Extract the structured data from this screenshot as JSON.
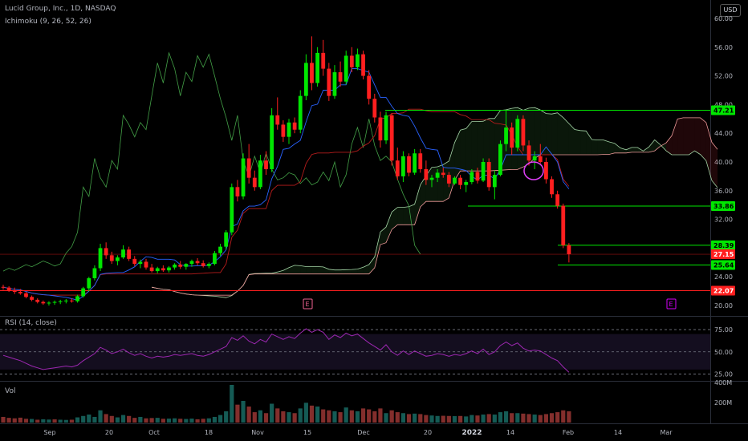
{
  "header": {
    "symbol_line": "Lucid Group, Inc., 1D, NASDAQ",
    "indicator": "Ichimoku (9, 26, 52, 26)",
    "currency": "USD"
  },
  "rsi_panel": {
    "label": "RSI (14, close)",
    "levels": [
      "75.00",
      "50.00",
      "25.00"
    ]
  },
  "volume_panel": {
    "label": "Vol",
    "ticks": [
      "400M",
      "200M"
    ]
  },
  "colors": {
    "bull": "#26a69a",
    "up": "#00e600",
    "down": "#ff1f1f",
    "blue": "#2962ff",
    "red_line": "#ff5252",
    "rsi": "#9c27b0"
  },
  "chart_data": {
    "type": "candlestick",
    "price_axis": {
      "ticks": [
        "60.00",
        "56.00",
        "52.00",
        "48.00",
        "44.00",
        "40.00",
        "36.00",
        "32.00",
        "28.00",
        "24.00",
        "20.00"
      ],
      "ylim": [
        19,
        61
      ]
    },
    "time_axis": {
      "labels": [
        "Sep",
        "20",
        "Oct",
        "18",
        "Nov",
        "15",
        "Dec",
        "20",
        "2022",
        "14",
        "Feb",
        "14",
        "Mar"
      ]
    },
    "price_labels": [
      {
        "text": "47.21",
        "value": 47.21,
        "color": "#00e600"
      },
      {
        "text": "33.86",
        "value": 33.86,
        "color": "#00e600"
      },
      {
        "text": "28.39",
        "value": 28.39,
        "color": "#00e600"
      },
      {
        "text": "27.15",
        "value": 27.15,
        "color": "#ff1f1f"
      },
      {
        "text": "25.64",
        "value": 25.64,
        "color": "#00e600"
      },
      {
        "text": "22.07",
        "value": 22.07,
        "color": "#ff1f1f"
      }
    ],
    "horizontal_levels": [
      47.21,
      33.86,
      28.39,
      25.64,
      22.07
    ],
    "earnings_markers": [
      "E",
      "E"
    ],
    "candles": [
      [
        22.6,
        22.9,
        22.2,
        22.5
      ],
      [
        22.5,
        22.7,
        21.9,
        22.1
      ],
      [
        22.1,
        22.5,
        21.6,
        21.9
      ],
      [
        21.9,
        22.3,
        21.5,
        21.7
      ],
      [
        21.7,
        21.9,
        21.0,
        21.2
      ],
      [
        21.2,
        21.4,
        20.6,
        20.8
      ],
      [
        20.8,
        21.0,
        20.3,
        20.5
      ],
      [
        20.5,
        20.7,
        20.1,
        20.3
      ],
      [
        20.3,
        20.6,
        20.0,
        20.4
      ],
      [
        20.4,
        20.7,
        20.1,
        20.5
      ],
      [
        20.5,
        20.8,
        20.2,
        20.6
      ],
      [
        20.6,
        20.9,
        20.3,
        20.7
      ],
      [
        20.7,
        21.0,
        20.4,
        20.6
      ],
      [
        20.6,
        21.5,
        20.4,
        21.3
      ],
      [
        21.3,
        22.6,
        21.1,
        22.4
      ],
      [
        22.4,
        24.0,
        22.0,
        23.8
      ],
      [
        23.8,
        25.6,
        23.5,
        25.2
      ],
      [
        25.2,
        28.6,
        24.8,
        28.0
      ],
      [
        28.0,
        28.8,
        26.5,
        27.0
      ],
      [
        27.0,
        27.5,
        25.8,
        26.2
      ],
      [
        26.2,
        27.0,
        25.6,
        26.7
      ],
      [
        26.7,
        28.4,
        26.5,
        27.8
      ],
      [
        27.8,
        28.2,
        26.2,
        26.5
      ],
      [
        26.5,
        26.9,
        25.5,
        25.8
      ],
      [
        25.8,
        26.4,
        25.2,
        26.1
      ],
      [
        26.1,
        26.5,
        25.0,
        25.3
      ],
      [
        25.3,
        25.8,
        24.6,
        24.8
      ],
      [
        24.8,
        25.4,
        24.5,
        25.2
      ],
      [
        25.2,
        25.6,
        24.7,
        24.9
      ],
      [
        24.9,
        25.5,
        24.6,
        25.3
      ],
      [
        25.3,
        25.9,
        25.0,
        25.7
      ],
      [
        25.7,
        26.2,
        25.1,
        25.4
      ],
      [
        25.4,
        25.9,
        25.0,
        25.8
      ],
      [
        25.8,
        26.4,
        25.4,
        26.2
      ],
      [
        26.2,
        26.6,
        25.6,
        25.9
      ],
      [
        25.9,
        26.3,
        25.3,
        25.5
      ],
      [
        25.5,
        26.0,
        25.2,
        25.8
      ],
      [
        25.8,
        27.6,
        25.6,
        27.3
      ],
      [
        27.3,
        28.6,
        26.9,
        28.2
      ],
      [
        28.2,
        30.5,
        27.8,
        30.2
      ],
      [
        30.2,
        37.0,
        29.8,
        36.5
      ],
      [
        36.5,
        37.5,
        34.5,
        35.2
      ],
      [
        35.2,
        41.2,
        34.8,
        40.5
      ],
      [
        40.5,
        42.5,
        37.0,
        37.8
      ],
      [
        37.8,
        38.8,
        36.0,
        36.5
      ],
      [
        36.5,
        41.0,
        36.2,
        40.2
      ],
      [
        40.2,
        41.5,
        38.2,
        39.0
      ],
      [
        39.0,
        47.5,
        38.6,
        46.5
      ],
      [
        46.5,
        49.0,
        44.5,
        45.2
      ],
      [
        45.2,
        45.8,
        42.8,
        43.5
      ],
      [
        43.5,
        46.0,
        42.5,
        45.5
      ],
      [
        45.5,
        46.2,
        44.0,
        44.5
      ],
      [
        44.5,
        50.0,
        44.0,
        49.2
      ],
      [
        49.2,
        55.0,
        48.6,
        53.8
      ],
      [
        53.8,
        57.5,
        50.0,
        51.0
      ],
      [
        51.0,
        56.0,
        50.5,
        55.2
      ],
      [
        55.2,
        57.0,
        52.0,
        53.0
      ],
      [
        53.0,
        53.8,
        48.5,
        49.2
      ],
      [
        49.2,
        53.5,
        48.8,
        52.5
      ],
      [
        52.5,
        54.0,
        50.5,
        51.2
      ],
      [
        51.2,
        55.5,
        50.8,
        54.8
      ],
      [
        54.8,
        56.0,
        52.5,
        53.2
      ],
      [
        53.2,
        55.8,
        52.8,
        55.0
      ],
      [
        55.0,
        55.5,
        51.5,
        52.0
      ],
      [
        52.0,
        52.8,
        48.0,
        48.8
      ],
      [
        48.8,
        49.5,
        45.5,
        46.2
      ],
      [
        46.2,
        47.0,
        42.0,
        43.0
      ],
      [
        43.0,
        47.0,
        42.5,
        46.5
      ],
      [
        46.5,
        46.8,
        39.5,
        40.2
      ],
      [
        40.2,
        42.0,
        37.5,
        38.0
      ],
      [
        38.0,
        41.5,
        37.2,
        40.8
      ],
      [
        40.8,
        41.2,
        38.0,
        38.5
      ],
      [
        38.5,
        41.8,
        38.2,
        41.2
      ],
      [
        41.2,
        41.8,
        38.5,
        39.0
      ],
      [
        39.0,
        40.2,
        36.8,
        37.5
      ],
      [
        37.5,
        38.2,
        36.5,
        37.8
      ],
      [
        37.8,
        39.0,
        37.2,
        38.5
      ],
      [
        38.5,
        39.2,
        37.8,
        38.2
      ],
      [
        38.2,
        38.6,
        36.5,
        37.0
      ],
      [
        37.0,
        38.0,
        36.8,
        37.8
      ],
      [
        37.8,
        38.2,
        36.2,
        36.8
      ],
      [
        36.8,
        37.5,
        35.8,
        37.2
      ],
      [
        37.2,
        39.0,
        36.9,
        38.6
      ],
      [
        38.6,
        39.2,
        37.0,
        37.4
      ],
      [
        37.4,
        40.5,
        37.2,
        40.0
      ],
      [
        40.0,
        40.5,
        36.0,
        36.5
      ],
      [
        36.5,
        38.8,
        34.8,
        38.2
      ],
      [
        38.2,
        43.0,
        38.0,
        42.5
      ],
      [
        42.5,
        47.2,
        41.5,
        44.8
      ],
      [
        44.8,
        45.5,
        41.0,
        42.0
      ],
      [
        42.0,
        46.5,
        41.5,
        46.0
      ],
      [
        46.0,
        46.5,
        41.5,
        42.3
      ],
      [
        42.3,
        43.0,
        39.5,
        40.2
      ],
      [
        40.2,
        41.5,
        39.0,
        40.8
      ],
      [
        40.8,
        42.5,
        39.8,
        40.0
      ],
      [
        40.0,
        40.6,
        37.0,
        37.6
      ],
      [
        37.6,
        38.0,
        35.0,
        35.5
      ],
      [
        35.5,
        36.0,
        33.5,
        33.9
      ],
      [
        33.9,
        34.2,
        28.0,
        28.4
      ],
      [
        28.4,
        28.7,
        26.0,
        27.15
      ]
    ],
    "volumes": [
      [
        60,
        0
      ],
      [
        50,
        0
      ],
      [
        45,
        0
      ],
      [
        52,
        0
      ],
      [
        40,
        0
      ],
      [
        38,
        1
      ],
      [
        30,
        0
      ],
      [
        35,
        1
      ],
      [
        32,
        1
      ],
      [
        34,
        0
      ],
      [
        30,
        1
      ],
      [
        28,
        1
      ],
      [
        30,
        0
      ],
      [
        55,
        1
      ],
      [
        70,
        1
      ],
      [
        85,
        1
      ],
      [
        60,
        1
      ],
      [
        130,
        1
      ],
      [
        90,
        0
      ],
      [
        70,
        0
      ],
      [
        55,
        1
      ],
      [
        80,
        1
      ],
      [
        70,
        0
      ],
      [
        50,
        0
      ],
      [
        60,
        1
      ],
      [
        45,
        0
      ],
      [
        48,
        0
      ],
      [
        50,
        1
      ],
      [
        40,
        0
      ],
      [
        42,
        1
      ],
      [
        45,
        1
      ],
      [
        40,
        0
      ],
      [
        38,
        1
      ],
      [
        42,
        1
      ],
      [
        35,
        0
      ],
      [
        40,
        0
      ],
      [
        45,
        1
      ],
      [
        60,
        1
      ],
      [
        80,
        1
      ],
      [
        120,
        1
      ],
      [
        400,
        1
      ],
      [
        190,
        0
      ],
      [
        230,
        1
      ],
      [
        170,
        0
      ],
      [
        110,
        0
      ],
      [
        130,
        1
      ],
      [
        100,
        0
      ],
      [
        200,
        1
      ],
      [
        150,
        0
      ],
      [
        120,
        0
      ],
      [
        110,
        1
      ],
      [
        100,
        0
      ],
      [
        150,
        1
      ],
      [
        210,
        1
      ],
      [
        180,
        0
      ],
      [
        170,
        1
      ],
      [
        140,
        0
      ],
      [
        130,
        0
      ],
      [
        120,
        1
      ],
      [
        110,
        0
      ],
      [
        160,
        1
      ],
      [
        130,
        0
      ],
      [
        120,
        1
      ],
      [
        150,
        0
      ],
      [
        140,
        0
      ],
      [
        120,
        0
      ],
      [
        150,
        0
      ],
      [
        100,
        1
      ],
      [
        130,
        0
      ],
      [
        110,
        0
      ],
      [
        100,
        1
      ],
      [
        90,
        0
      ],
      [
        95,
        1
      ],
      [
        90,
        0
      ],
      [
        80,
        0
      ],
      [
        75,
        1
      ],
      [
        70,
        1
      ],
      [
        72,
        0
      ],
      [
        70,
        0
      ],
      [
        68,
        1
      ],
      [
        70,
        0
      ],
      [
        65,
        1
      ],
      [
        80,
        1
      ],
      [
        75,
        0
      ],
      [
        85,
        1
      ],
      [
        90,
        0
      ],
      [
        85,
        1
      ],
      [
        110,
        1
      ],
      [
        120,
        1
      ],
      [
        100,
        0
      ],
      [
        100,
        1
      ],
      [
        95,
        0
      ],
      [
        90,
        0
      ],
      [
        85,
        1
      ],
      [
        80,
        0
      ],
      [
        90,
        0
      ],
      [
        100,
        0
      ],
      [
        110,
        0
      ],
      [
        130,
        0
      ],
      [
        120,
        0
      ]
    ],
    "rsi": [
      46,
      44,
      42,
      40,
      37,
      34,
      32,
      30,
      31,
      32,
      33,
      34,
      33,
      35,
      40,
      44,
      48,
      55,
      52,
      48,
      50,
      53,
      49,
      46,
      48,
      45,
      43,
      45,
      44,
      45,
      47,
      46,
      47,
      48,
      46,
      45,
      47,
      50,
      53,
      56,
      66,
      63,
      68,
      62,
      59,
      64,
      61,
      70,
      67,
      64,
      67,
      65,
      71,
      76,
      72,
      75,
      72,
      64,
      69,
      66,
      71,
      68,
      70,
      65,
      60,
      56,
      52,
      58,
      50,
      46,
      51,
      47,
      51,
      48,
      45,
      46,
      48,
      47,
      45,
      47,
      46,
      48,
      51,
      48,
      53,
      47,
      50,
      57,
      61,
      57,
      60,
      54,
      51,
      52,
      51,
      47,
      43,
      40,
      33,
      27
    ]
  }
}
